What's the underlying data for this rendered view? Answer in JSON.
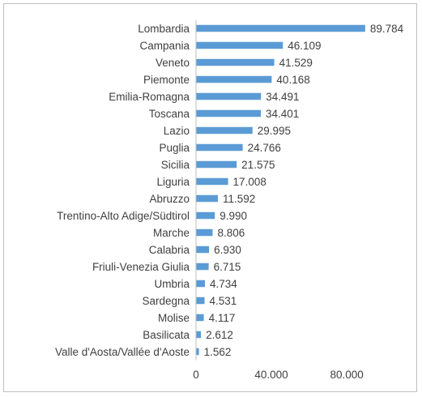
{
  "chart_data": {
    "type": "bar",
    "orientation": "horizontal",
    "title": "",
    "xlabel": "",
    "ylabel": "",
    "categories": [
      "Lombardia",
      "Campania",
      "Veneto",
      "Piemonte",
      "Emilia-Romagna",
      "Toscana",
      "Lazio",
      "Puglia",
      "Sicilia",
      "Liguria",
      "Abruzzo",
      "Trentino-Alto Adige/Südtirol",
      "Marche",
      "Calabria",
      "Friuli-Venezia Giulia",
      "Umbria",
      "Sardegna",
      "Molise",
      "Basilicata",
      "Valle d'Aosta/Vallée d'Aoste"
    ],
    "values": [
      89784,
      46109,
      41529,
      40168,
      34491,
      34401,
      29995,
      24766,
      21575,
      17008,
      11592,
      9990,
      8806,
      6930,
      6715,
      4734,
      4531,
      4117,
      2612,
      1562
    ],
    "value_labels": [
      "89.784",
      "46.109",
      "41.529",
      "40.168",
      "34.491",
      "34.401",
      "29.995",
      "24.766",
      "21.575",
      "17.008",
      "11.592",
      "9.990",
      "8.806",
      "6.930",
      "6.715",
      "4.734",
      "4.531",
      "4.117",
      "2.612",
      "1.562"
    ],
    "xlim": [
      0,
      92000
    ],
    "x_ticks": [
      0,
      40000,
      80000
    ],
    "x_tick_labels": [
      "0",
      "40.000",
      "80.000"
    ],
    "grid": false,
    "legend": "none",
    "bar_color": "#5b9bd5",
    "axis_color": "#bfbfbf"
  }
}
